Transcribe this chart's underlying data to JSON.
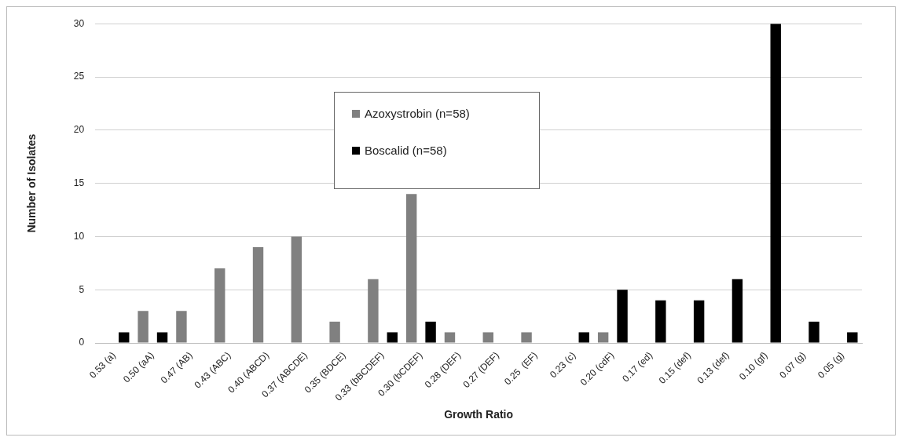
{
  "chart_data": {
    "type": "bar",
    "xlabel": "Growth Ratio",
    "ylabel": "Number of Isolates",
    "categories": [
      "0.53 (a)",
      "0.50 (aA)",
      "0.47 (AB)",
      "0.43 (ABC)",
      "0.40 (ABCD)",
      "0.37 (ABCDE)",
      "0.35 (BDCE)",
      "0.33 (bBCDEF)",
      "0.30 (bCDEF)",
      "0.28 (DEF)",
      "0.27 (DEF)",
      "0.25  (EF)",
      "0.23 (c)",
      "0.20 (cdF)",
      "0.17 (ed)",
      "0.15 (def)",
      "0.13 (def)",
      "0.10 (gf)",
      "0.07 (g)",
      "0.05 (g)"
    ],
    "series": [
      {
        "name": "Azoxystrobin (n=58)",
        "color": "#808080",
        "values": [
          0,
          3,
          3,
          7,
          9,
          10,
          2,
          6,
          14,
          1,
          1,
          1,
          0,
          1,
          0,
          0,
          0,
          0,
          0,
          0
        ]
      },
      {
        "name": "Boscalid (n=58)",
        "color": "#000000",
        "values": [
          1,
          1,
          0,
          0,
          0,
          0,
          0,
          1,
          2,
          0,
          0,
          0,
          1,
          5,
          4,
          4,
          6,
          30,
          2,
          1
        ]
      }
    ],
    "ylim": [
      0,
      30
    ],
    "yticks": [
      0,
      5,
      10,
      15,
      20,
      25,
      30
    ],
    "grid": "y",
    "legend": "top"
  }
}
